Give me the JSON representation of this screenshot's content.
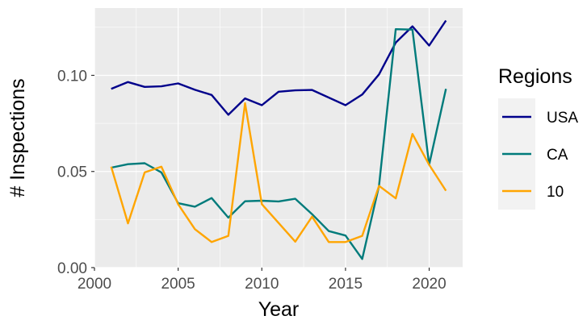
{
  "chart_data": {
    "type": "line",
    "xlabel": "Year",
    "ylabel": "# Inspections",
    "xlim": [
      2000,
      2022
    ],
    "ylim": [
      0,
      0.135
    ],
    "x_ticks": [
      2000,
      2005,
      2010,
      2015,
      2020
    ],
    "x_tick_labels": [
      "2000",
      "2005",
      "2010",
      "2015",
      "2020"
    ],
    "y_ticks": [
      0,
      0.05,
      0.1
    ],
    "y_tick_labels": [
      "0.00",
      "0.05",
      "0.10"
    ],
    "grid": true,
    "legend_title": "Regions",
    "legend_position": "right",
    "series": [
      {
        "name": "USA",
        "color": "#00008B",
        "x": [
          2001,
          2002,
          2003,
          2004,
          2005,
          2006,
          2007,
          2008,
          2009,
          2010,
          2011,
          2012,
          2013,
          2015,
          2016,
          2017,
          2018,
          2019,
          2020,
          2021
        ],
        "y": [
          0.093,
          0.0965,
          0.094,
          0.0943,
          0.0958,
          0.0925,
          0.0898,
          0.0795,
          0.088,
          0.0845,
          0.0915,
          0.0922,
          0.0924,
          0.0845,
          0.09,
          0.1005,
          0.117,
          0.1255,
          0.1155,
          0.1285
        ]
      },
      {
        "name": "CA",
        "color": "#007B7B",
        "x": [
          2001,
          2002,
          2003,
          2004,
          2005,
          2006,
          2007,
          2008,
          2009,
          2010,
          2011,
          2012,
          2013,
          2014,
          2015,
          2016,
          2017,
          2018,
          2019,
          2020,
          2021
        ],
        "y": [
          0.052,
          0.0538,
          0.0543,
          0.0495,
          0.0335,
          0.0317,
          0.0362,
          0.026,
          0.0345,
          0.0348,
          0.0344,
          0.0358,
          0.0278,
          0.019,
          0.0167,
          0.0045,
          0.0425,
          0.124,
          0.1238,
          0.0535,
          0.093
        ]
      },
      {
        "name": "10",
        "color": "#FFA500",
        "x": [
          2001,
          2002,
          2003,
          2004,
          2005,
          2006,
          2007,
          2008,
          2009,
          2010,
          2012,
          2013,
          2014,
          2015,
          2016,
          2017,
          2018,
          2019,
          2020,
          2021
        ],
        "y": [
          0.0525,
          0.023,
          0.0495,
          0.0525,
          0.033,
          0.02,
          0.0133,
          0.0165,
          0.0855,
          0.033,
          0.0135,
          0.0265,
          0.0133,
          0.0133,
          0.0165,
          0.0425,
          0.036,
          0.0695,
          0.0535,
          0.04
        ]
      }
    ]
  }
}
